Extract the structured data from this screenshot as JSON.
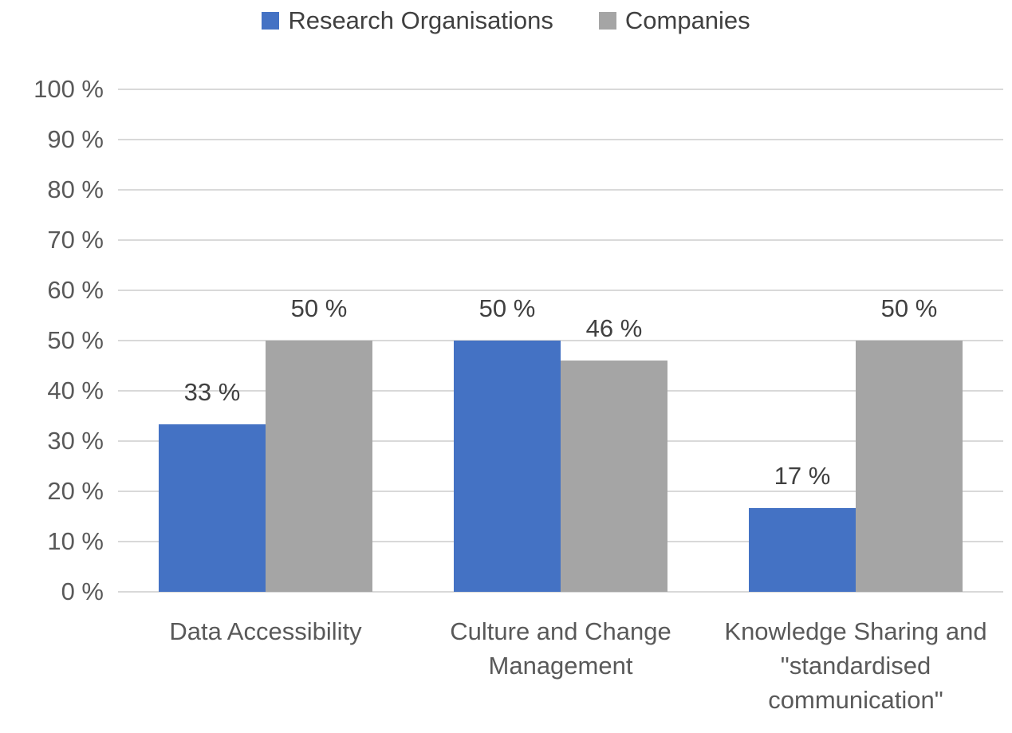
{
  "chart_data": {
    "type": "bar",
    "title": "",
    "xlabel": "",
    "ylabel": "",
    "categories": [
      "Data Accessibility",
      "Culture and Change Management",
      "Knowledge Sharing and \"standardised communication\""
    ],
    "series": [
      {
        "name": "Research Organisations",
        "color": "#4472C4",
        "values": [
          33.3,
          50,
          16.7
        ],
        "data_labels": [
          "33 %",
          "50 %",
          "17 %"
        ]
      },
      {
        "name": "Companies",
        "color": "#A5A5A5",
        "values": [
          50,
          46,
          50
        ],
        "data_labels": [
          "50 %",
          "46 %",
          "50 %"
        ]
      }
    ],
    "ylim": [
      0,
      100
    ],
    "y_tick_step": 10,
    "y_ticks": [
      "0 %",
      "10 %",
      "20 %",
      "30 %",
      "40 %",
      "50 %",
      "60 %",
      "70 %",
      "80 %",
      "90 %",
      "100 %"
    ],
    "grid": true,
    "legend_position": "top",
    "colors": {
      "gridline": "#D9D9D9",
      "tick_text": "#595959",
      "category_text": "#595959",
      "data_label_text": "#404040",
      "legend_text": "#404040",
      "background": "#FFFFFF"
    }
  }
}
